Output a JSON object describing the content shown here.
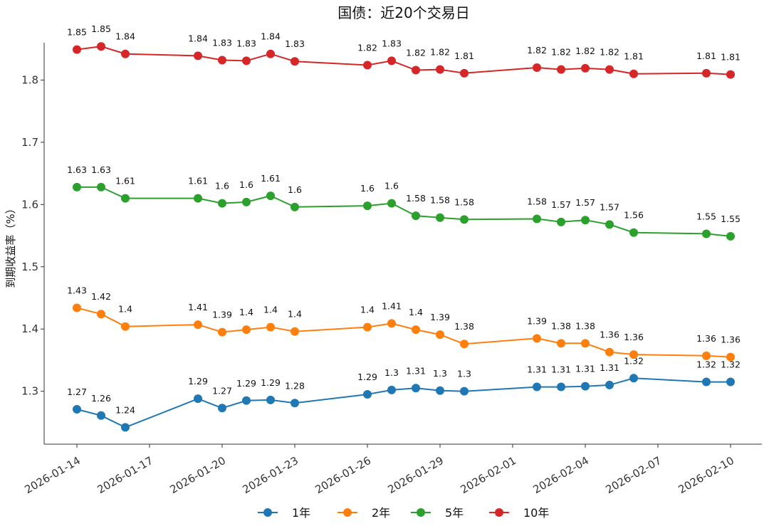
{
  "chart_data": {
    "type": "line",
    "title": "国债：近20个交易日",
    "xlabel": "",
    "ylabel": "到期收益率（%）",
    "x_ticks": [
      "2026-01-14",
      "2026-01-17",
      "2026-01-20",
      "2026-01-23",
      "2026-01-26",
      "2026-01-29",
      "2026-02-01",
      "2026-02-04",
      "2026-02-07",
      "2026-02-10"
    ],
    "y_ticks": [
      "1.3",
      "1.4",
      "1.5",
      "1.6",
      "1.7",
      "1.8"
    ],
    "x_range": [
      "2026-01-14",
      "2026-02-10"
    ],
    "ylim": [
      1.215,
      1.86
    ],
    "grid": false,
    "legend_position": "bottom-center",
    "x": [
      "2026-01-14",
      "2026-01-15",
      "2026-01-16",
      "2026-01-19",
      "2026-01-20",
      "2026-01-21",
      "2026-01-22",
      "2026-01-23",
      "2026-01-26",
      "2026-01-27",
      "2026-01-28",
      "2026-01-29",
      "2026-01-30",
      "2026-02-02",
      "2026-02-03",
      "2026-02-04",
      "2026-02-05",
      "2026-02-06",
      "2026-02-09",
      "2026-02-10"
    ],
    "series": [
      {
        "name": "1年",
        "color": "#1f77b4",
        "values": [
          1.271,
          1.261,
          1.242,
          1.288,
          1.273,
          1.285,
          1.286,
          1.281,
          1.295,
          1.302,
          1.305,
          1.301,
          1.3,
          1.307,
          1.307,
          1.308,
          1.31,
          1.321,
          1.315,
          1.315
        ],
        "labels": [
          "1.27",
          "1.26",
          "1.24",
          "1.29",
          "1.27",
          "1.29",
          "1.29",
          "1.28",
          "1.29",
          "1.3",
          "1.31",
          "1.3",
          "1.3",
          "1.31",
          "1.31",
          "1.31",
          "1.31",
          "1.32",
          "1.32",
          "1.32"
        ]
      },
      {
        "name": "2年",
        "color": "#ff7f0e",
        "values": [
          1.434,
          1.424,
          1.404,
          1.407,
          1.395,
          1.399,
          1.403,
          1.396,
          1.403,
          1.409,
          1.399,
          1.391,
          1.376,
          1.385,
          1.377,
          1.377,
          1.363,
          1.359,
          1.357,
          1.355
        ],
        "labels": [
          "1.43",
          "1.42",
          "1.4",
          "1.41",
          "1.39",
          "1.4",
          "1.4",
          "1.4",
          "1.4",
          "1.41",
          "1.4",
          "1.39",
          "1.38",
          "1.39",
          "1.38",
          "1.38",
          "1.36",
          "1.36",
          "1.36",
          "1.36"
        ]
      },
      {
        "name": "5年",
        "color": "#2ca02c",
        "values": [
          1.628,
          1.628,
          1.61,
          1.61,
          1.602,
          1.604,
          1.614,
          1.596,
          1.598,
          1.602,
          1.582,
          1.579,
          1.576,
          1.577,
          1.572,
          1.575,
          1.568,
          1.555,
          1.553,
          1.549
        ],
        "labels": [
          "1.63",
          "1.63",
          "1.61",
          "1.61",
          "1.6",
          "1.6",
          "1.61",
          "1.6",
          "1.6",
          "1.6",
          "1.58",
          "1.58",
          "1.58",
          "1.58",
          "1.57",
          "1.57",
          "1.57",
          "1.56",
          "1.55",
          "1.55"
        ]
      },
      {
        "name": "10年",
        "color": "#d62728",
        "values": [
          1.849,
          1.854,
          1.842,
          1.839,
          1.832,
          1.831,
          1.842,
          1.83,
          1.824,
          1.831,
          1.816,
          1.817,
          1.811,
          1.82,
          1.817,
          1.819,
          1.817,
          1.81,
          1.811,
          1.809
        ],
        "labels": [
          "1.85",
          "1.85",
          "1.84",
          "1.84",
          "1.83",
          "1.83",
          "1.84",
          "1.83",
          "1.82",
          "1.83",
          "1.82",
          "1.82",
          "1.81",
          "1.82",
          "1.82",
          "1.82",
          "1.82",
          "1.81",
          "1.81",
          "1.81"
        ]
      }
    ]
  }
}
